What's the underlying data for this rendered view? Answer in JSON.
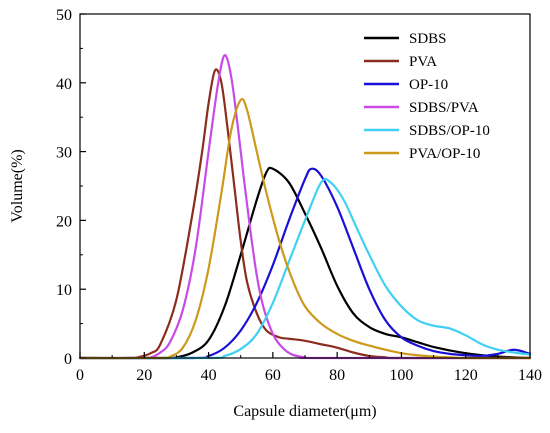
{
  "chart_data": {
    "type": "line",
    "xlabel": "Capsule diameter(μm)",
    "ylabel": "Volume(%)",
    "xlim": [
      0,
      140
    ],
    "ylim": [
      0,
      50
    ],
    "x_ticks": [
      "0",
      "20",
      "40",
      "60",
      "80",
      "100",
      "120",
      "140"
    ],
    "y_ticks": [
      "0",
      "10",
      "20",
      "30",
      "40",
      "50"
    ],
    "grid": false,
    "legend_position": "top-right",
    "series": [
      {
        "name": "SDBS",
        "color": "#000000",
        "points": [
          [
            0,
            0
          ],
          [
            25,
            0
          ],
          [
            30,
            0.1
          ],
          [
            35,
            0.8
          ],
          [
            40,
            2.6
          ],
          [
            45,
            7.5
          ],
          [
            50,
            15
          ],
          [
            55,
            23
          ],
          [
            58,
            27
          ],
          [
            60,
            27.5
          ],
          [
            65,
            25.5
          ],
          [
            70,
            21
          ],
          [
            75,
            16
          ],
          [
            80,
            10.5
          ],
          [
            85,
            6.5
          ],
          [
            90,
            4.5
          ],
          [
            95,
            3.5
          ],
          [
            100,
            3
          ],
          [
            105,
            2.3
          ],
          [
            110,
            1.6
          ],
          [
            115,
            1.1
          ],
          [
            120,
            0.7
          ],
          [
            125,
            0.4
          ],
          [
            130,
            0.2
          ],
          [
            135,
            0.1
          ],
          [
            140,
            0
          ]
        ]
      },
      {
        "name": "PVA",
        "color": "#8b2d1e",
        "points": [
          [
            0,
            0
          ],
          [
            15,
            0
          ],
          [
            18,
            0.1
          ],
          [
            22,
            0.7
          ],
          [
            25,
            2
          ],
          [
            30,
            8.5
          ],
          [
            35,
            21
          ],
          [
            38,
            30
          ],
          [
            40,
            37
          ],
          [
            42,
            41.8
          ],
          [
            44,
            40
          ],
          [
            46,
            33
          ],
          [
            48,
            25
          ],
          [
            50,
            17
          ],
          [
            52,
            11
          ],
          [
            55,
            6.5
          ],
          [
            58,
            4
          ],
          [
            62,
            3
          ],
          [
            65,
            2.8
          ],
          [
            70,
            2.5
          ],
          [
            75,
            2
          ],
          [
            80,
            1.5
          ],
          [
            85,
            0.8
          ],
          [
            90,
            0.3
          ],
          [
            95,
            0.1
          ],
          [
            100,
            0
          ],
          [
            140,
            0
          ]
        ]
      },
      {
        "name": "OP-10",
        "color": "#1a0fd6",
        "points": [
          [
            0,
            0
          ],
          [
            35,
            0
          ],
          [
            40,
            0.3
          ],
          [
            45,
            1.5
          ],
          [
            50,
            4
          ],
          [
            55,
            8
          ],
          [
            60,
            13.5
          ],
          [
            65,
            20
          ],
          [
            70,
            26
          ],
          [
            72,
            27.5
          ],
          [
            75,
            26.5
          ],
          [
            80,
            22
          ],
          [
            85,
            16
          ],
          [
            90,
            10
          ],
          [
            95,
            5.5
          ],
          [
            100,
            3
          ],
          [
            105,
            1.8
          ],
          [
            110,
            1
          ],
          [
            115,
            0.6
          ],
          [
            120,
            0.4
          ],
          [
            125,
            0.3
          ],
          [
            130,
            0.6
          ],
          [
            135,
            1.2
          ],
          [
            140,
            0.6
          ]
        ]
      },
      {
        "name": "SDBS/PVA",
        "color": "#c84be6",
        "points": [
          [
            0,
            0
          ],
          [
            18,
            0
          ],
          [
            22,
            0.1
          ],
          [
            25,
            0.8
          ],
          [
            28,
            2.3
          ],
          [
            32,
            7
          ],
          [
            36,
            16
          ],
          [
            40,
            30
          ],
          [
            43,
            40
          ],
          [
            45,
            44
          ],
          [
            47,
            41
          ],
          [
            49,
            34
          ],
          [
            51,
            26
          ],
          [
            53,
            18.5
          ],
          [
            55,
            12
          ],
          [
            57,
            7.5
          ],
          [
            60,
            3.5
          ],
          [
            63,
            1.5
          ],
          [
            66,
            0.5
          ],
          [
            70,
            0.1
          ],
          [
            75,
            0
          ],
          [
            140,
            0
          ]
        ]
      },
      {
        "name": "SDBS/OP-10",
        "color": "#3fd0f2",
        "points": [
          [
            0,
            0
          ],
          [
            40,
            0
          ],
          [
            45,
            0.3
          ],
          [
            50,
            1.3
          ],
          [
            55,
            3.5
          ],
          [
            60,
            8
          ],
          [
            65,
            14
          ],
          [
            70,
            20
          ],
          [
            75,
            25.5
          ],
          [
            78,
            25.5
          ],
          [
            82,
            23
          ],
          [
            86,
            19
          ],
          [
            90,
            15
          ],
          [
            95,
            10.5
          ],
          [
            100,
            7.5
          ],
          [
            105,
            5.5
          ],
          [
            110,
            4.7
          ],
          [
            115,
            4.3
          ],
          [
            120,
            3.3
          ],
          [
            125,
            2
          ],
          [
            130,
            1.2
          ],
          [
            135,
            0.8
          ],
          [
            140,
            0.5
          ]
        ]
      },
      {
        "name": "PVA/OP-10",
        "color": "#cc9a1a",
        "points": [
          [
            0,
            0
          ],
          [
            25,
            0
          ],
          [
            28,
            0.2
          ],
          [
            32,
            1.5
          ],
          [
            36,
            5.5
          ],
          [
            40,
            13
          ],
          [
            44,
            24
          ],
          [
            47,
            33
          ],
          [
            50,
            37.5
          ],
          [
            52,
            36
          ],
          [
            55,
            30
          ],
          [
            58,
            24
          ],
          [
            62,
            17
          ],
          [
            66,
            11.5
          ],
          [
            70,
            7.5
          ],
          [
            75,
            5
          ],
          [
            80,
            3.5
          ],
          [
            85,
            2.5
          ],
          [
            90,
            1.8
          ],
          [
            95,
            1.2
          ],
          [
            100,
            0.7
          ],
          [
            105,
            0.4
          ],
          [
            110,
            0.2
          ],
          [
            115,
            0.1
          ],
          [
            120,
            0
          ],
          [
            140,
            0
          ]
        ]
      }
    ]
  }
}
